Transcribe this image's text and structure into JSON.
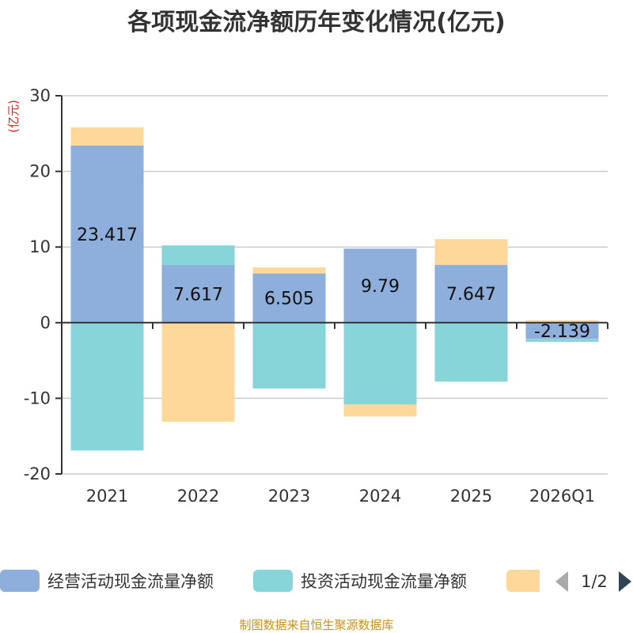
{
  "chart_data": {
    "type": "bar",
    "stacked": true,
    "title": "各项现金流净额历年变化情况(亿元)",
    "ylabel": "(亿元)",
    "ylim": [
      -20,
      30
    ],
    "yticks": [
      -20,
      -10,
      0,
      10,
      20,
      30
    ],
    "grid": true,
    "categories": [
      "2021",
      "2022",
      "2023",
      "2024",
      "2025",
      "2026Q1"
    ],
    "series": [
      {
        "name": "经营活动现金流量净额",
        "color": "#8eaedb",
        "values": [
          23.417,
          7.617,
          6.505,
          9.79,
          7.647,
          -2.139
        ],
        "labels": [
          "23.417",
          "7.617",
          "6.505",
          "9.79",
          "7.647",
          "-2.139"
        ]
      },
      {
        "name": "投资活动现金流量净额",
        "color": "#87d5d9",
        "values": [
          -16.9,
          2.6,
          -8.7,
          -10.8,
          -7.8,
          -0.4
        ]
      },
      {
        "name": "",
        "color": "#fdd89a",
        "values": [
          2.4,
          -13.1,
          0.8,
          -1.6,
          3.4,
          0.3
        ]
      }
    ],
    "legend_position": "bottom",
    "legend_page": "1/2"
  },
  "source": "制图数据来自恒生聚源数据库"
}
